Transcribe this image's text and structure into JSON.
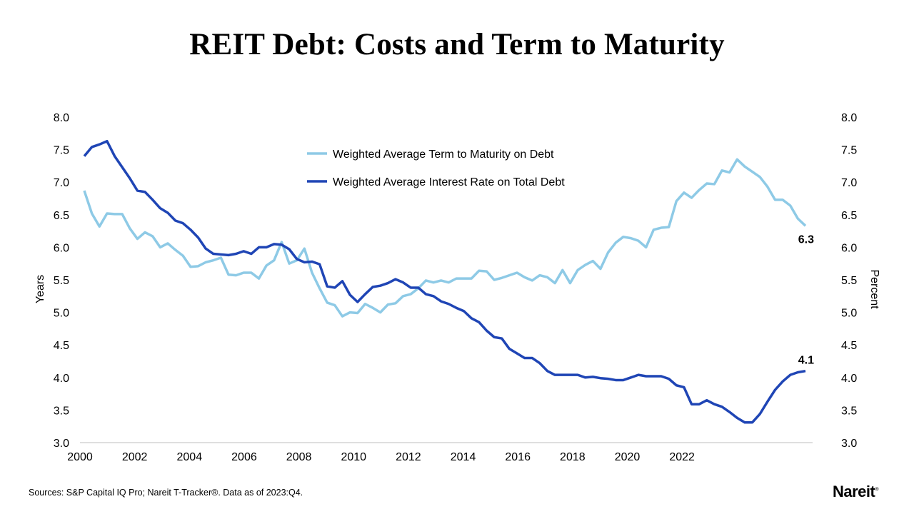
{
  "title": "REIT Debt: Costs and Term to Maturity",
  "source": "Sources: S&P Capital IQ Pro; Nareit T-Tracker®. Data as of 2023:Q4.",
  "logo": "Nareit",
  "chart_data": {
    "type": "line",
    "xlabel": "",
    "ylabel_left": "Years",
    "ylabel_right": "Percent",
    "x_tick_labels": [
      "2000",
      "2002",
      "2004",
      "2006",
      "2008",
      "2010",
      "2012",
      "2014",
      "2016",
      "2018",
      "2020",
      "2022"
    ],
    "y_ticks": [
      "3.0",
      "3.5",
      "4.0",
      "4.5",
      "5.0",
      "5.5",
      "6.0",
      "6.5",
      "7.0",
      "7.5",
      "8.0"
    ],
    "ylim_left": [
      3.0,
      8.0
    ],
    "ylim_right": [
      3.0,
      8.0
    ],
    "grid": false,
    "legend_placement": "top-center",
    "x_start": "2000:Q1",
    "x_end": "2023:Q4",
    "frequency": "quarterly",
    "series": [
      {
        "name": "Weighted Average Term to Maturity on Debt",
        "axis": "left",
        "color": "#8ecae6",
        "end_label": "6.3",
        "values": [
          6.87,
          6.52,
          6.32,
          6.52,
          6.51,
          6.51,
          6.29,
          6.13,
          6.23,
          6.17,
          6.0,
          6.06,
          5.96,
          5.87,
          5.7,
          5.71,
          5.77,
          5.8,
          5.84,
          5.58,
          5.57,
          5.61,
          5.61,
          5.52,
          5.72,
          5.8,
          6.08,
          5.75,
          5.8,
          5.98,
          5.61,
          5.37,
          5.15,
          5.11,
          4.94,
          5.0,
          4.99,
          5.13,
          5.07,
          5.0,
          5.12,
          5.14,
          5.25,
          5.28,
          5.37,
          5.49,
          5.46,
          5.49,
          5.46,
          5.52,
          5.52,
          5.52,
          5.64,
          5.63,
          5.5,
          5.53,
          5.57,
          5.61,
          5.54,
          5.49,
          5.57,
          5.54,
          5.45,
          5.65,
          5.45,
          5.65,
          5.73,
          5.79,
          5.67,
          5.92,
          6.07,
          6.16,
          6.14,
          6.1,
          6.0,
          6.27,
          6.3,
          6.31,
          6.71,
          6.84,
          6.76,
          6.88,
          6.98,
          6.97,
          7.18,
          7.15,
          7.35,
          7.24,
          7.16,
          7.08,
          6.93,
          6.73,
          6.73,
          6.64,
          6.44,
          6.33
        ]
      },
      {
        "name": "Weighted Average Interest Rate on Total Debt",
        "axis": "right",
        "color": "#1f45b5",
        "end_label": "4.1",
        "values": [
          7.4,
          7.54,
          7.58,
          7.63,
          7.4,
          7.23,
          7.06,
          6.87,
          6.85,
          6.73,
          6.6,
          6.53,
          6.41,
          6.37,
          6.27,
          6.15,
          5.98,
          5.9,
          5.89,
          5.88,
          5.9,
          5.94,
          5.9,
          6.0,
          6.0,
          6.05,
          6.04,
          5.97,
          5.82,
          5.77,
          5.78,
          5.74,
          5.4,
          5.38,
          5.48,
          5.27,
          5.16,
          5.28,
          5.39,
          5.41,
          5.45,
          5.51,
          5.46,
          5.38,
          5.38,
          5.28,
          5.25,
          5.17,
          5.13,
          5.07,
          5.02,
          4.91,
          4.85,
          4.72,
          4.62,
          4.6,
          4.44,
          4.37,
          4.3,
          4.3,
          4.22,
          4.1,
          4.04,
          4.04,
          4.04,
          4.04,
          4.0,
          4.01,
          3.99,
          3.98,
          3.96,
          3.96,
          4.0,
          4.04,
          4.02,
          4.02,
          4.02,
          3.98,
          3.88,
          3.85,
          3.59,
          3.59,
          3.65,
          3.59,
          3.55,
          3.47,
          3.38,
          3.31,
          3.31,
          3.44,
          3.63,
          3.81,
          3.94,
          4.04,
          4.08,
          4.1
        ]
      }
    ]
  }
}
